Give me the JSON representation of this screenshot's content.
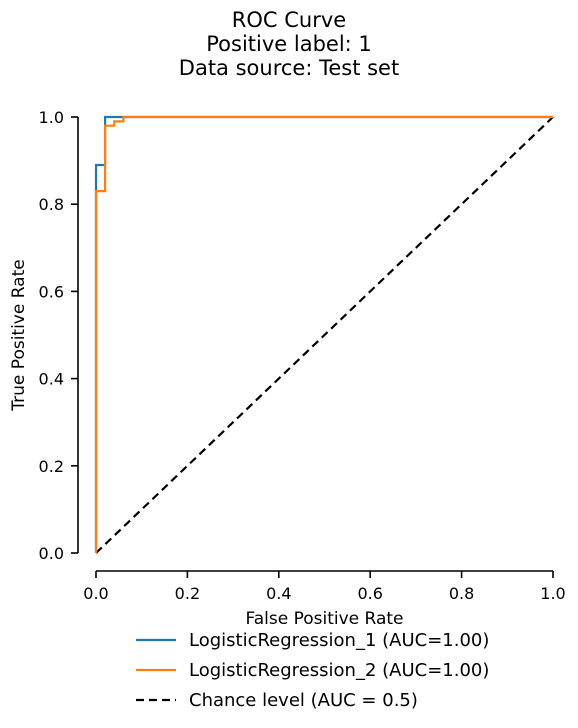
{
  "chart_data": {
    "type": "line",
    "title_lines": [
      "ROC Curve",
      "Positive label: 1",
      "Data source: Test set"
    ],
    "xlabel": "False Positive Rate",
    "ylabel": "True Positive Rate",
    "xlim": [
      0,
      1
    ],
    "ylim": [
      0,
      1
    ],
    "x_ticks": [
      0.0,
      0.2,
      0.4,
      0.6,
      0.8,
      1.0
    ],
    "y_ticks": [
      0.0,
      0.2,
      0.4,
      0.6,
      0.8,
      1.0
    ],
    "x_tick_labels": [
      "0.0",
      "0.2",
      "0.4",
      "0.6",
      "0.8",
      "1.0"
    ],
    "y_tick_labels": [
      "0.0",
      "0.2",
      "0.4",
      "0.6",
      "0.8",
      "1.0"
    ],
    "grid": false,
    "legend_position": "below-plot",
    "series": [
      {
        "name": "LogisticRegression_1 (AUC=1.00)",
        "color": "#1f77b4",
        "style": "solid",
        "x": [
          0.0,
          0.0,
          0.0,
          0.02,
          0.02,
          1.0
        ],
        "y": [
          0.0,
          0.89,
          0.89,
          0.89,
          1.0,
          1.0
        ]
      },
      {
        "name": "LogisticRegression_2 (AUC=1.00)",
        "color": "#ff7f0e",
        "style": "solid",
        "x": [
          0.0,
          0.0,
          0.02,
          0.02,
          0.04,
          0.04,
          0.06,
          0.06,
          1.0
        ],
        "y": [
          0.0,
          0.83,
          0.83,
          0.98,
          0.98,
          0.99,
          0.99,
          1.0,
          1.0
        ]
      },
      {
        "name": "Chance level (AUC = 0.5)",
        "color": "#000000",
        "style": "dashed",
        "x": [
          0.0,
          1.0
        ],
        "y": [
          0.0,
          1.0
        ]
      }
    ]
  }
}
